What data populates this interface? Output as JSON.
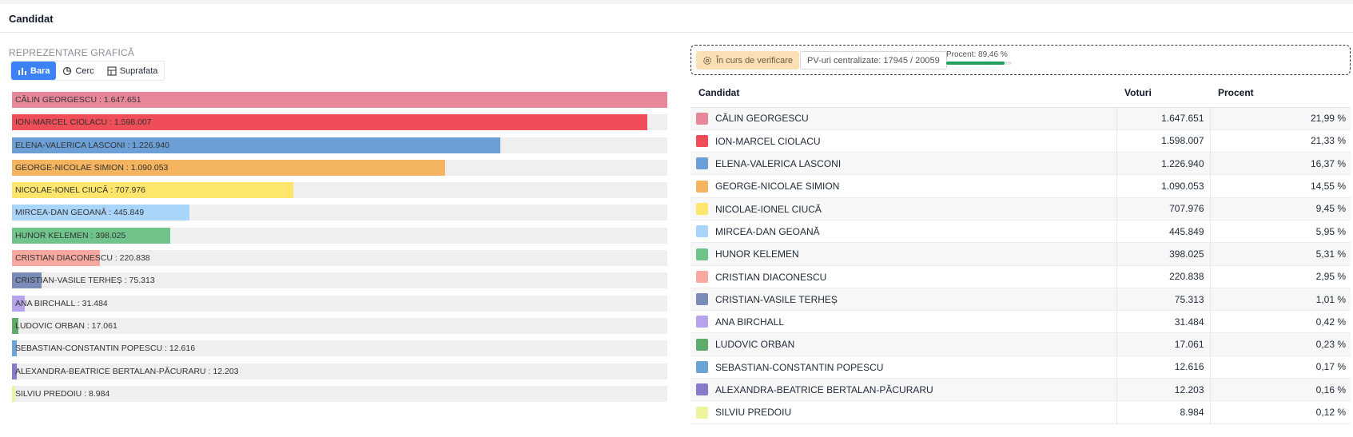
{
  "header": {
    "title": "Candidat"
  },
  "section_title": "REPREZENTARE GRAFICĂ",
  "view_toggle": {
    "options": [
      "Bara",
      "Cerc",
      "Suprafata"
    ],
    "active": "Bara"
  },
  "status": {
    "verification_label": "În curs de verificare",
    "pv_label": "PV-uri centralizate: 17945 / 20059",
    "percent_label": "Procent: 89,46 %",
    "percent_value": 89.46
  },
  "table": {
    "headers": [
      "Candidat",
      "Voturi",
      "Procent"
    ]
  },
  "candidates": [
    {
      "name": "CĂLIN GEORGESCU",
      "votes": "1.647.651",
      "percent": "21,99 %",
      "color": "#e8879a"
    },
    {
      "name": "ION-MARCEL CIOLACU",
      "votes": "1.598.007",
      "percent": "21,33 %",
      "color": "#ef4d57"
    },
    {
      "name": "ELENA-VALERICA LASCONI",
      "votes": "1.226.940",
      "percent": "16,37 %",
      "color": "#6b9fd6"
    },
    {
      "name": "GEORGE-NICOLAE SIMION",
      "votes": "1.090.053",
      "percent": "14,55 %",
      "color": "#f5b45f"
    },
    {
      "name": "NICOLAE-IONEL CIUCĂ",
      "votes": "707.976",
      "percent": "9,45 %",
      "color": "#fde66b"
    },
    {
      "name": "MIRCEA-DAN GEOANĂ",
      "votes": "445.849",
      "percent": "5,95 %",
      "color": "#a9d5fb"
    },
    {
      "name": "HUNOR KELEMEN",
      "votes": "398.025",
      "percent": "5,31 %",
      "color": "#6fc38b"
    },
    {
      "name": "CRISTIAN DIACONESCU",
      "votes": "220.838",
      "percent": "2,95 %",
      "color": "#f7a9a0"
    },
    {
      "name": "CRISTIAN-VASILE TERHEȘ",
      "votes": "75.313",
      "percent": "1,01 %",
      "color": "#7b8bb7"
    },
    {
      "name": "ANA BIRCHALL",
      "votes": "31.484",
      "percent": "0,42 %",
      "color": "#b7a3ec"
    },
    {
      "name": "LUDOVIC ORBAN",
      "votes": "17.061",
      "percent": "0,23 %",
      "color": "#5fab6b"
    },
    {
      "name": "SEBASTIAN-CONSTANTIN POPESCU",
      "votes": "12.616",
      "percent": "0,17 %",
      "color": "#6aa4d4"
    },
    {
      "name": "ALEXANDRA-BEATRICE BERTALAN-PĂCURARU",
      "votes": "12.203",
      "percent": "0,16 %",
      "color": "#8a78c8"
    },
    {
      "name": "SILVIU PREDOIU",
      "votes": "8.984",
      "percent": "0,12 %",
      "color": "#eef3a0"
    }
  ],
  "chart_data": {
    "type": "bar",
    "orientation": "horizontal",
    "categories": [
      "CĂLIN GEORGESCU",
      "ION-MARCEL CIOLACU",
      "ELENA-VALERICA LASCONI",
      "GEORGE-NICOLAE SIMION",
      "NICOLAE-IONEL CIUCĂ",
      "MIRCEA-DAN GEOANĂ",
      "HUNOR KELEMEN",
      "CRISTIAN DIACONESCU",
      "CRISTIAN-VASILE TERHEȘ",
      "ANA BIRCHALL",
      "LUDOVIC ORBAN",
      "SEBASTIAN-CONSTANTIN POPESCU",
      "ALEXANDRA-BEATRICE BERTALAN-PĂCURARU",
      "SILVIU PREDOIU"
    ],
    "values": [
      1647651,
      1598007,
      1226940,
      1090053,
      707976,
      445849,
      398025,
      220838,
      75313,
      31484,
      17061,
      12616,
      12203,
      8984
    ],
    "value_labels": [
      "1.647.651",
      "1.598.007",
      "1.226.940",
      "1.090.053",
      "707.976",
      "445.849",
      "398.025",
      "220.838",
      "75.313",
      "31.484",
      "17.061",
      "12.616",
      "12.203",
      "8.984"
    ],
    "xlim": [
      0,
      1647651
    ],
    "grid": false,
    "legend": "none"
  }
}
